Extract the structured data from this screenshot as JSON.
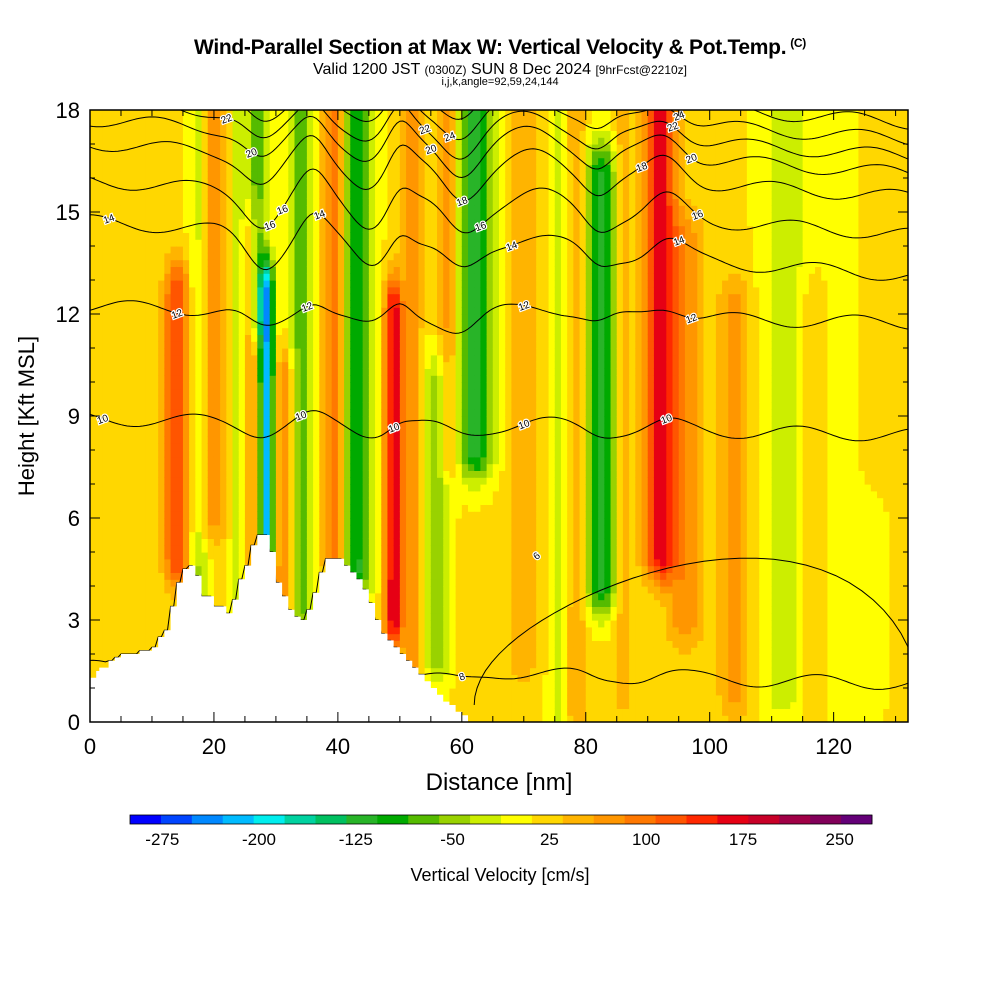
{
  "header": {
    "title": "Wind-Parallel Section at Max W: Vertical Velocity & Pot.Temp.",
    "copyright_mark": "(C)",
    "valid_prefix": "Valid 1200 JST",
    "valid_utc": "(0300Z)",
    "valid_date": "SUN 8 Dec 2024",
    "forecast": "[9hrFcst@2210z]",
    "indices": "i,j,k,angle=92,59,24,144"
  },
  "colors": {
    "terrain": "#ffffff",
    "contour": "#000000",
    "frame": "#000000"
  },
  "chart_data": {
    "type": "heatmap",
    "xlabel": "Distance [nm]",
    "ylabel": "Height [Kft MSL]",
    "xlim": [
      0,
      132
    ],
    "ylim": [
      0,
      18
    ],
    "x_ticks": [
      0,
      20,
      40,
      60,
      80,
      100,
      120
    ],
    "y_ticks": [
      0,
      3,
      6,
      9,
      12,
      15,
      18
    ],
    "colorbar": {
      "label": "Vertical Velocity [cm/s]",
      "range": [
        -300,
        275
      ],
      "tick_values": [
        -275,
        -200,
        -125,
        -50,
        25,
        100,
        175,
        250
      ],
      "tick_labels": [
        "-275",
        "-200",
        "-125",
        "-50",
        "25",
        "100",
        "175",
        "250"
      ],
      "colors": [
        "#0000ff",
        "#0044ff",
        "#0088ff",
        "#00bbff",
        "#00eeee",
        "#00d2a0",
        "#00c060",
        "#28b428",
        "#00aa00",
        "#55bb00",
        "#99d200",
        "#ccee00",
        "#ffff00",
        "#ffd700",
        "#ffb400",
        "#ff9600",
        "#ff7800",
        "#ff5500",
        "#ff2800",
        "#e60014",
        "#c80028",
        "#a00046",
        "#82005a",
        "#640078"
      ]
    },
    "vertical_velocity_cm_s": {
      "background": 15,
      "features": [
        {
          "x": 14,
          "ybot": 4.8,
          "ytop": 12.5,
          "w": 2.0,
          "v": 120
        },
        {
          "x": 17.5,
          "ybot": 3.5,
          "ytop": 18,
          "w": 1.6,
          "v": -60
        },
        {
          "x": 19.5,
          "ybot": 6,
          "ytop": 18,
          "w": 2.5,
          "v": 60
        },
        {
          "x": 24,
          "ybot": 3.5,
          "ytop": 18,
          "w": 1.4,
          "v": -40
        },
        {
          "x": 26,
          "ybot": 4,
          "ytop": 14,
          "w": 1.3,
          "v": 60
        },
        {
          "x": 28.5,
          "ybot": 5.5,
          "ytop": 12.5,
          "w": 1.2,
          "v": -230
        },
        {
          "x": 27,
          "ybot": 12,
          "ytop": 18,
          "w": 1.4,
          "v": -90
        },
        {
          "x": 31.5,
          "ybot": 3.5,
          "ytop": 10,
          "w": 1.6,
          "v": 80
        },
        {
          "x": 34,
          "ybot": 3.5,
          "ytop": 18,
          "w": 2.0,
          "v": -90
        },
        {
          "x": 39.5,
          "ybot": 5,
          "ytop": 18,
          "w": 2.0,
          "v": 90
        },
        {
          "x": 43,
          "ybot": 4.5,
          "ytop": 18,
          "w": 2.5,
          "v": -130
        },
        {
          "x": 49,
          "ybot": 3,
          "ytop": 12,
          "w": 1.4,
          "v": 160
        },
        {
          "x": 52,
          "ybot": 2,
          "ytop": 18,
          "w": 1.5,
          "v": 60
        },
        {
          "x": 56,
          "ybot": 2,
          "ytop": 10,
          "w": 2.0,
          "v": -70
        },
        {
          "x": 58,
          "ybot": 8,
          "ytop": 18,
          "w": 2.0,
          "v": 70
        },
        {
          "x": 62,
          "ybot": 8,
          "ytop": 18,
          "w": 3.0,
          "v": -140
        },
        {
          "x": 70,
          "ybot": 2,
          "ytop": 18,
          "w": 2.5,
          "v": 40
        },
        {
          "x": 76,
          "ybot": 0.5,
          "ytop": 18,
          "w": 1.8,
          "v": -50
        },
        {
          "x": 78,
          "ybot": 0.5,
          "ytop": 18,
          "w": 2.0,
          "v": 50
        },
        {
          "x": 82.5,
          "ybot": 4,
          "ytop": 16,
          "w": 2.5,
          "v": -130
        },
        {
          "x": 86,
          "ybot": 1,
          "ytop": 18,
          "w": 1.5,
          "v": 40
        },
        {
          "x": 92,
          "ybot": 5,
          "ytop": 18,
          "w": 2.5,
          "v": 150
        },
        {
          "x": 96,
          "ybot": 3,
          "ytop": 14,
          "w": 3.0,
          "v": 60
        },
        {
          "x": 104,
          "ybot": 1,
          "ytop": 12,
          "w": 2.5,
          "v": 60
        },
        {
          "x": 112,
          "ybot": 1,
          "ytop": 18,
          "w": 3.5,
          "v": -45
        },
        {
          "x": 117,
          "ybot": 1,
          "ytop": 12,
          "w": 2.0,
          "v": 35
        },
        {
          "x": 122,
          "ybot": 0.5,
          "ytop": 18,
          "w": 5.0,
          "v": -20
        },
        {
          "x": 126,
          "ybot": 8,
          "ytop": 18,
          "w": 2.5,
          "v": 30
        }
      ]
    },
    "terrain_kft": {
      "x": [
        0,
        1,
        1.5,
        3,
        4,
        5,
        8,
        10,
        11,
        12,
        13,
        14,
        15,
        16,
        17,
        18,
        20,
        21,
        22,
        23,
        24,
        25,
        26,
        27,
        28,
        29,
        30,
        31,
        32,
        33,
        34,
        35,
        36,
        37,
        38,
        39,
        40,
        41,
        42,
        43,
        44,
        45,
        46,
        47,
        48,
        49,
        50,
        51,
        52,
        53,
        54,
        55,
        56,
        57,
        58,
        59,
        60,
        61
      ],
      "height": [
        1.3,
        1.5,
        1.6,
        1.8,
        1.9,
        2.0,
        2.1,
        2.2,
        2.5,
        2.7,
        3.4,
        4.1,
        4.5,
        4.6,
        4.3,
        3.7,
        3.4,
        3.4,
        3.2,
        3.6,
        4.2,
        4.6,
        5.2,
        5.5,
        5.5,
        5.0,
        4.1,
        3.7,
        3.3,
        3.1,
        3.0,
        3.3,
        3.8,
        4.4,
        4.8,
        4.8,
        4.8,
        4.6,
        4.4,
        4.2,
        3.9,
        3.5,
        3.0,
        2.6,
        2.4,
        2.2,
        2.0,
        1.8,
        1.6,
        1.4,
        1.2,
        1.0,
        0.8,
        0.6,
        0.5,
        0.3,
        0.2,
        0.1
      ]
    },
    "theta_contours_c": [
      {
        "value": 8,
        "y0": 1.4,
        "labels_at_x": [
          60
        ]
      },
      {
        "value": 10,
        "y0": 8.7,
        "labels_at_x": [
          2,
          34,
          49,
          70,
          93
        ]
      },
      {
        "value": 12,
        "y0": 12.0,
        "labels_at_x": [
          14,
          35,
          70,
          97
        ]
      },
      {
        "value": 14,
        "y0": 14.0,
        "labels_at_x": [
          3,
          37,
          68,
          95
        ]
      },
      {
        "value": 16,
        "y0": 15.2,
        "labels_at_x": [
          29,
          31,
          63,
          98
        ]
      },
      {
        "value": 18,
        "y0": 16.3,
        "labels_at_x": [
          60,
          89
        ]
      },
      {
        "value": 20,
        "y0": 17.0,
        "labels_at_x": [
          26,
          55,
          97
        ]
      },
      {
        "value": 22,
        "y0": 17.5,
        "labels_at_x": [
          22,
          54,
          94
        ]
      },
      {
        "value": 24,
        "y0": 18.0,
        "labels_at_x": [
          58,
          95
        ]
      },
      {
        "value": 26,
        "y0": 18.5,
        "labels_at_x": [
          95
        ]
      }
    ],
    "theta_low_contour": {
      "value": 6,
      "label_x": 72,
      "label_y": 4.9
    }
  }
}
